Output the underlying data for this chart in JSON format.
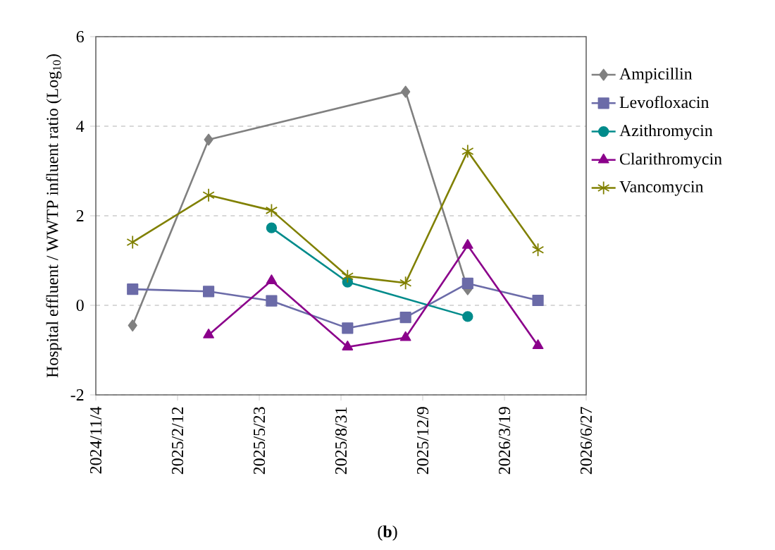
{
  "chart_data": {
    "type": "line",
    "ylabel": "Hospital effluent / WWTP influent ratio (Log$_{10}$)",
    "annotations": [
      "(**b**)"
    ],
    "xlim": [
      "2024-11-04",
      "2026-06-27"
    ],
    "xticks": [
      {
        "value": "2024-11-04",
        "label": "2024/11/4"
      },
      {
        "value": "2025-02-12",
        "label": "2025/2/12"
      },
      {
        "value": "2025-05-23",
        "label": "2025/5/23"
      },
      {
        "value": "2025-08-31",
        "label": "2025/8/31"
      },
      {
        "value": "2025-12-09",
        "label": "2025/12/9"
      },
      {
        "value": "2026-03-19",
        "label": "2026/3/19"
      },
      {
        "value": "2026-06-27",
        "label": "2026/6/27"
      }
    ],
    "ylim": [
      -2,
      6
    ],
    "yticks": [
      -2,
      0,
      2,
      4,
      6
    ],
    "grid": "y",
    "legend": "right",
    "series": [
      {
        "name": "Ampicillin",
        "color": "#808080",
        "marker": "diamond",
        "x": [
          "2024-12-19",
          "2025-03-22",
          "2025-11-18",
          "2026-02-02"
        ],
        "values": [
          -0.45,
          3.7,
          4.77,
          0.36
        ]
      },
      {
        "name": "Levofloxacin",
        "color": "#6b6ba8",
        "marker": "square",
        "x": [
          "2024-12-19",
          "2025-03-22",
          "2025-06-07",
          "2025-09-08",
          "2025-11-18",
          "2026-02-02",
          "2026-04-29"
        ],
        "values": [
          0.36,
          0.31,
          0.1,
          -0.51,
          -0.27,
          0.49,
          0.11
        ]
      },
      {
        "name": "Azithromycin",
        "color": "#008b8b",
        "marker": "circle",
        "x": [
          "2025-06-07",
          "2025-09-08",
          "2026-02-02"
        ],
        "values": [
          1.73,
          0.52,
          -0.25
        ]
      },
      {
        "name": "Clarithromycin",
        "color": "#8b008b",
        "marker": "triangle",
        "x": [
          "2025-03-22",
          "2025-06-07",
          "2025-09-08",
          "2025-11-18",
          "2026-02-02",
          "2026-04-29"
        ],
        "values": [
          -0.66,
          0.55,
          -0.93,
          -0.72,
          1.34,
          -0.9
        ]
      },
      {
        "name": "Vancomycin",
        "color": "#808000",
        "marker": "cross",
        "x": [
          "2024-12-19",
          "2025-03-22",
          "2025-06-07",
          "2025-09-08",
          "2025-11-18",
          "2026-02-02",
          "2026-04-29"
        ],
        "values": [
          1.41,
          2.46,
          2.12,
          0.65,
          0.5,
          3.44,
          1.24
        ]
      }
    ]
  }
}
